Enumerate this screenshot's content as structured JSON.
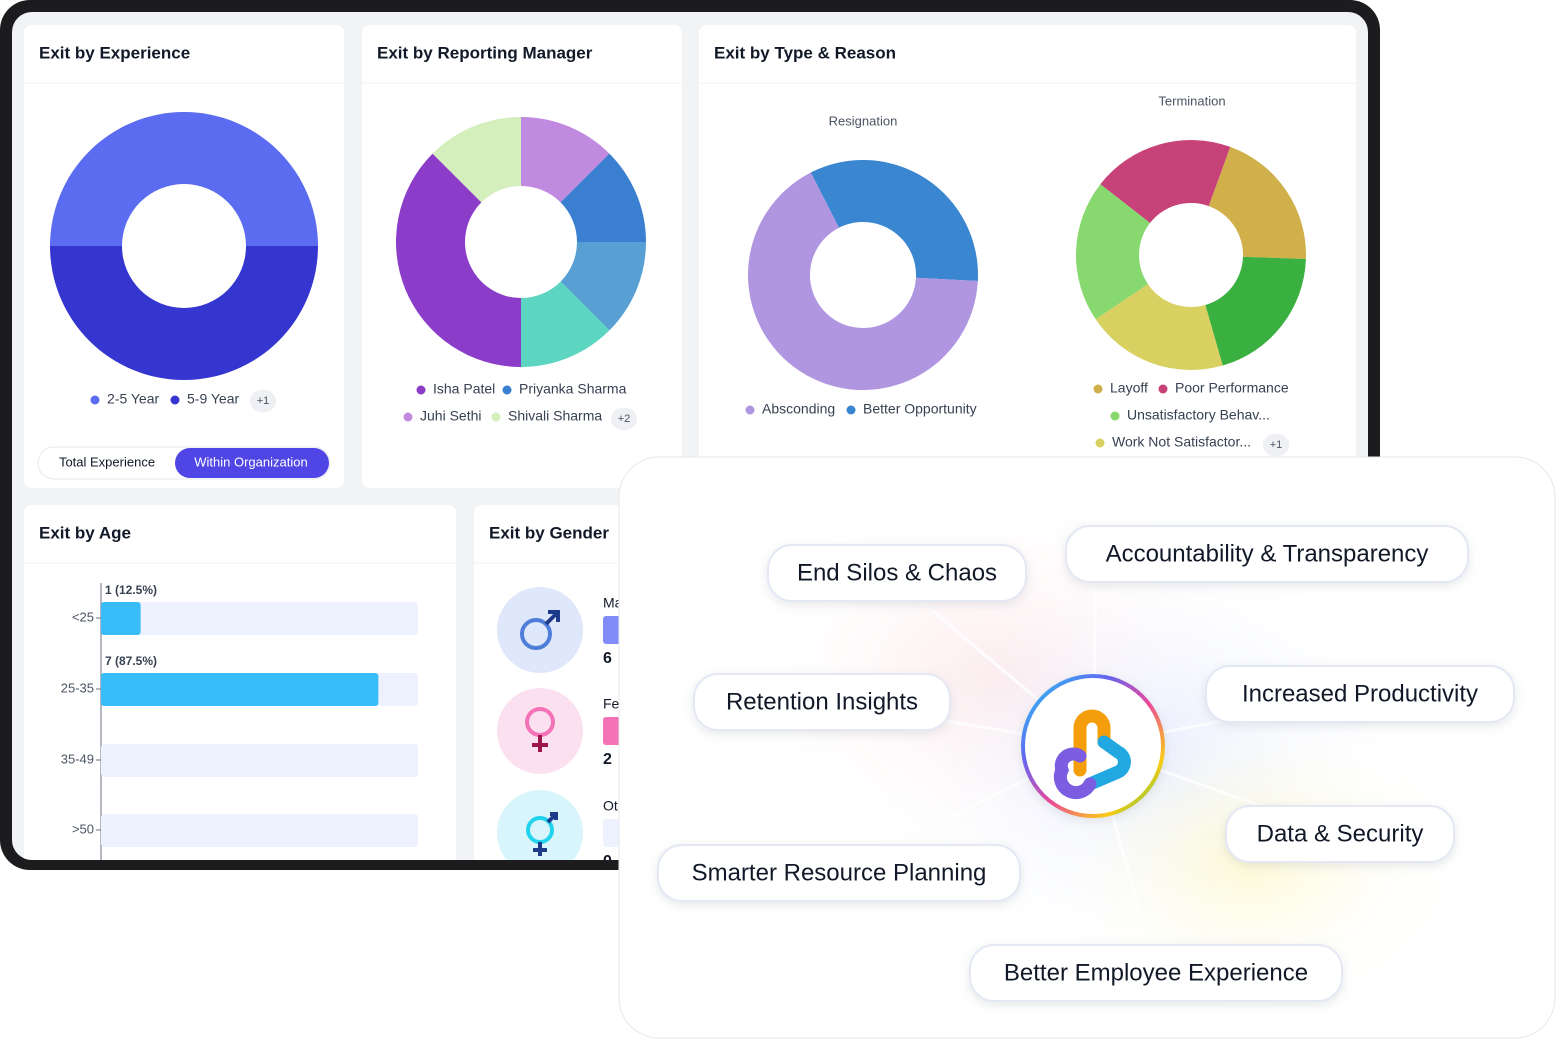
{
  "chart_data": [
    {
      "type": "pie",
      "title": "Exit by Experience",
      "categories": [
        "2-5 Year",
        "5-9 Year"
      ],
      "values": [
        4,
        4
      ],
      "colors": [
        "#5b6cf0",
        "#3535d0"
      ],
      "legend_more": "+1",
      "toggle": [
        "Total Experience",
        "Within Organization"
      ]
    },
    {
      "type": "pie",
      "title": "Exit by Reporting Manager",
      "categories": [
        "Isha Patel",
        "Priyanka Sharma",
        "Juhi Sethi",
        "Shivali Sharma",
        null,
        null
      ],
      "values": [
        3,
        1,
        1,
        1,
        1,
        1
      ],
      "colors": [
        "#8b3cc8",
        "#3a7fd0",
        "#c08ae0",
        "#d4eebc",
        "#58a0d4",
        "#5cd6c0"
      ],
      "legend_more": "+2"
    },
    {
      "type": "pie",
      "title": "Exit by Type & Reason",
      "subtitle": "Resignation",
      "categories": [
        "Absconding",
        "Better Opportunity"
      ],
      "values": [
        2,
        1
      ],
      "colors": [
        "#b095e0",
        "#3a86d0"
      ]
    },
    {
      "type": "pie",
      "subtitle": "Termination",
      "categories": [
        "Layoff",
        "Poor Performance",
        "Unsatisfactory Behav...",
        "Work Not Satisfactor...",
        null
      ],
      "values": [
        1,
        1,
        1,
        1,
        1
      ],
      "colors": [
        "#d0b04a",
        "#c8427a",
        "#88d870",
        "#d8d060",
        "#3ab040"
      ],
      "legend_more": "+1"
    },
    {
      "type": "bar",
      "orientation": "horizontal",
      "title": "Exit by Age",
      "categories": [
        "<25",
        "25-35",
        "35-49",
        ">50"
      ],
      "values": [
        1,
        7,
        0,
        0
      ],
      "value_labels": [
        "1 (12.5%)",
        "7 (87.5%)",
        null,
        null
      ],
      "xlim": [
        0,
        8
      ],
      "color": "#38bdf8"
    },
    {
      "type": "bar",
      "title": "Exit by Gender",
      "categories": [
        "Male",
        "Female",
        "Other"
      ],
      "values": [
        6,
        2,
        0
      ],
      "colors": [
        "#818cf8",
        "#f472b6",
        "#e0e7ff"
      ]
    }
  ],
  "features": {
    "items": [
      "End Silos & Chaos",
      "Accountability & Transparency",
      "Retention Insights",
      "Increased Productivity",
      "Data & Security",
      "Smarter Resource Planning",
      "Better Employee Experience"
    ]
  }
}
